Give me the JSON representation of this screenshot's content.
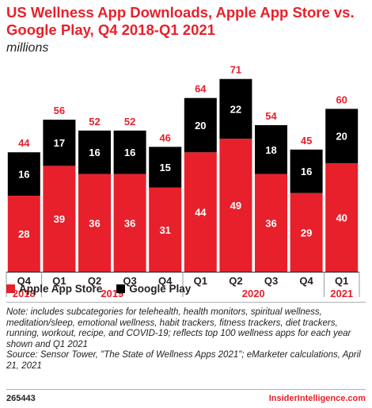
{
  "header": {
    "title": "US Wellness App Downloads, Apple App Store vs. Google Play, Q4 2018-Q1 2021",
    "subtitle": "millions"
  },
  "colors": {
    "apple": "#e8202b",
    "google": "#000000",
    "total_label": "#e8202b"
  },
  "chart_data": {
    "type": "bar",
    "stacked": true,
    "categories": [
      "Q4",
      "Q1",
      "Q2",
      "Q3",
      "Q4",
      "Q1",
      "Q2",
      "Q3",
      "Q4",
      "Q1"
    ],
    "years": [
      {
        "label": "2018",
        "start": 0,
        "end": 0
      },
      {
        "label": "2019",
        "start": 1,
        "end": 4
      },
      {
        "label": "2020",
        "start": 5,
        "end": 8
      },
      {
        "label": "2021",
        "start": 9,
        "end": 9
      }
    ],
    "series": [
      {
        "name": "Apple App Store",
        "values": [
          28,
          39,
          36,
          36,
          31,
          44,
          49,
          36,
          29,
          40
        ]
      },
      {
        "name": "Google Play",
        "values": [
          16,
          17,
          16,
          16,
          15,
          20,
          22,
          18,
          16,
          20
        ]
      }
    ],
    "totals": [
      44,
      56,
      52,
      52,
      46,
      64,
      71,
      54,
      45,
      60
    ],
    "ylim": [
      0,
      75
    ],
    "grid": false,
    "legend": "bottom-left"
  },
  "notes": {
    "note": "Note: includes subcategories for telehealth, health monitors, spiritual wellness, meditation/sleep, emotional wellness, habit trackers, fitness trackers, diet trackers, running, workout, recipe, and COVID-19; reflects top 100 wellness apps for each year shown and Q1 2021",
    "source": "Source: Sensor Tower, \"The State of Wellness Apps 2021\"; eMarketer calculations, April 21, 2021"
  },
  "footer": {
    "id": "265443",
    "brand": "InsiderIntelligence.com"
  }
}
